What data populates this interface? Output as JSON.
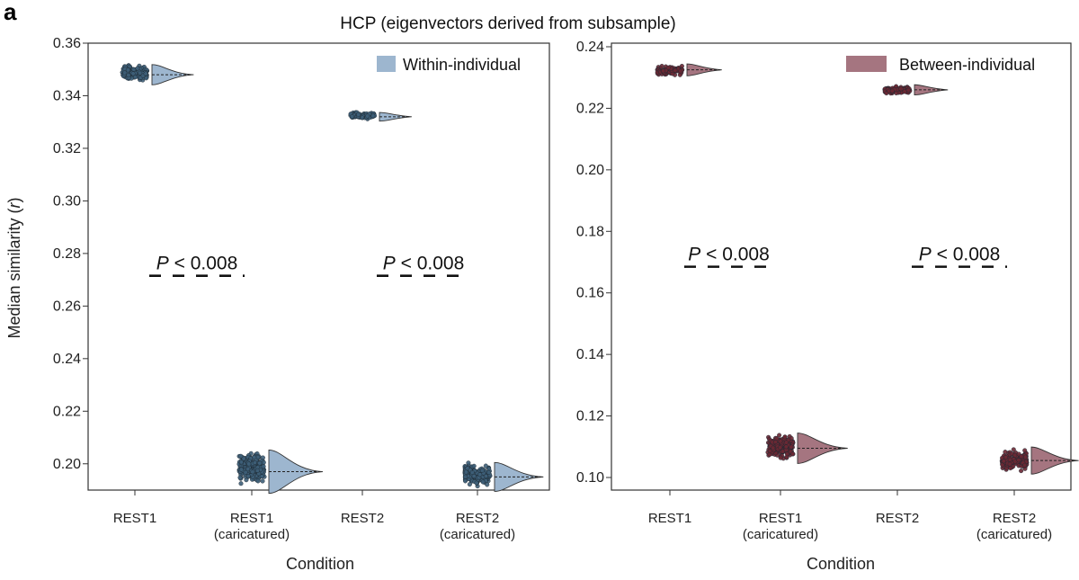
{
  "panel_label": "a",
  "chart_data": [
    {
      "type": "raincloud",
      "title": "HCP (eigenvectors derived from subsample)",
      "xlabel": "Condition",
      "ylabel": "Median similarity (r)",
      "ylabel_main": "Median similarity (",
      "ylabel_var": "r",
      "ylabel_end": ")",
      "ylim": [
        0.19,
        0.36
      ],
      "yticks": [
        0.2,
        0.22,
        0.24,
        0.26,
        0.28,
        0.3,
        0.32,
        0.34,
        0.36
      ],
      "ytick_labels": [
        "0.20",
        "0.22",
        "0.24",
        "0.26",
        "0.28",
        "0.30",
        "0.32",
        "0.34",
        "0.36"
      ],
      "categories": [
        {
          "line1": "REST1",
          "line2": ""
        },
        {
          "line1": "REST1",
          "line2": "(caricatured)"
        },
        {
          "line1": "REST2",
          "line2": ""
        },
        {
          "line1": "REST2",
          "line2": "(caricatured)"
        }
      ],
      "legend": {
        "label": "Within-individual",
        "color": "#9db6cf"
      },
      "point_color": "#3e5f78",
      "distributions": [
        {
          "median": 0.348,
          "min": 0.345,
          "max": 0.352
        },
        {
          "median": 0.197,
          "min": 0.191,
          "max": 0.206
        },
        {
          "median": 0.332,
          "min": 0.331,
          "max": 0.334
        },
        {
          "median": 0.195,
          "min": 0.191,
          "max": 0.201
        }
      ],
      "annotations": [
        {
          "p_symbol": "P",
          "p_rest": " < 0.008",
          "y": 0.2715,
          "pair": [
            0,
            1
          ]
        },
        {
          "p_symbol": "P",
          "p_rest": " < 0.008",
          "y": 0.2715,
          "pair": [
            2,
            3
          ]
        }
      ]
    },
    {
      "type": "raincloud",
      "xlabel": "Condition",
      "ylim": [
        0.1,
        0.24
      ],
      "yticks": [
        0.1,
        0.12,
        0.14,
        0.16,
        0.18,
        0.2,
        0.22,
        0.24
      ],
      "ytick_labels": [
        "0.10",
        "0.12",
        "0.14",
        "0.16",
        "0.18",
        "0.20",
        "0.22",
        "0.24"
      ],
      "categories": [
        {
          "line1": "REST1",
          "line2": ""
        },
        {
          "line1": "REST1",
          "line2": "(caricatured)"
        },
        {
          "line1": "REST2",
          "line2": ""
        },
        {
          "line1": "REST2",
          "line2": "(caricatured)"
        }
      ],
      "legend": {
        "label": "Between-individual",
        "color": "#a57580"
      },
      "point_color": "#6b2834",
      "distributions": [
        {
          "median": 0.2325,
          "min": 0.2305,
          "max": 0.234
        },
        {
          "median": 0.1095,
          "min": 0.1055,
          "max": 0.1145
        },
        {
          "median": 0.226,
          "min": 0.2245,
          "max": 0.2275
        },
        {
          "median": 0.1055,
          "min": 0.1015,
          "max": 0.1095
        }
      ],
      "annotations": [
        {
          "p_symbol": "P",
          "p_rest": " < 0.008",
          "y": 0.1685,
          "pair": [
            0,
            1
          ]
        },
        {
          "p_symbol": "P",
          "p_rest": " < 0.008",
          "y": 0.1685,
          "pair": [
            2,
            3
          ]
        }
      ]
    }
  ]
}
